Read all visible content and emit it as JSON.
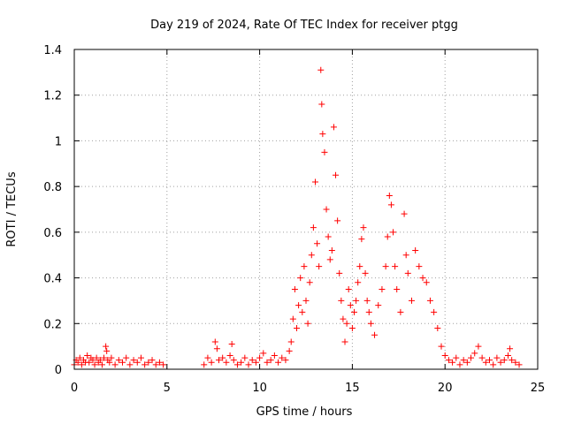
{
  "chart_data": {
    "type": "scatter",
    "title": "Day 219 of 2024, Rate Of TEC Index for receiver ptgg",
    "xlabel": "GPS time / hours",
    "ylabel": "ROTI / TECUs",
    "xlim": [
      0,
      25
    ],
    "ylim": [
      0,
      1.4
    ],
    "x_ticks": [
      0,
      5,
      10,
      15,
      20,
      25
    ],
    "x_tick_labels": [
      "0",
      "5",
      "10",
      "15",
      "20",
      "25"
    ],
    "y_ticks": [
      0,
      0.2,
      0.4,
      0.6,
      0.8,
      1,
      1.2,
      1.4
    ],
    "y_tick_labels": [
      "0",
      "0.2",
      "0.4",
      "0.6",
      "0.8",
      "1",
      "1.2",
      "1.4"
    ],
    "grid": true,
    "marker": "+",
    "series": [
      {
        "name": "ROTI",
        "color": "#ff0000",
        "points": [
          [
            0.0,
            0.02
          ],
          [
            0.1,
            0.04
          ],
          [
            0.2,
            0.03
          ],
          [
            0.3,
            0.05
          ],
          [
            0.4,
            0.02
          ],
          [
            0.5,
            0.04
          ],
          [
            0.6,
            0.03
          ],
          [
            0.7,
            0.06
          ],
          [
            0.8,
            0.03
          ],
          [
            0.9,
            0.05
          ],
          [
            1.0,
            0.04
          ],
          [
            1.1,
            0.02
          ],
          [
            1.2,
            0.05
          ],
          [
            1.3,
            0.03
          ],
          [
            1.4,
            0.04
          ],
          [
            1.5,
            0.02
          ],
          [
            1.6,
            0.05
          ],
          [
            1.7,
            0.1
          ],
          [
            1.75,
            0.08
          ],
          [
            1.8,
            0.04
          ],
          [
            1.9,
            0.03
          ],
          [
            2.0,
            0.05
          ],
          [
            2.2,
            0.02
          ],
          [
            2.4,
            0.04
          ],
          [
            2.6,
            0.03
          ],
          [
            2.8,
            0.05
          ],
          [
            3.0,
            0.02
          ],
          [
            3.2,
            0.04
          ],
          [
            3.4,
            0.03
          ],
          [
            3.6,
            0.05
          ],
          [
            3.8,
            0.02
          ],
          [
            4.0,
            0.03
          ],
          [
            4.2,
            0.04
          ],
          [
            4.4,
            0.02
          ],
          [
            4.6,
            0.03
          ],
          [
            4.8,
            0.02
          ],
          [
            7.0,
            0.02
          ],
          [
            7.2,
            0.05
          ],
          [
            7.4,
            0.03
          ],
          [
            7.6,
            0.12
          ],
          [
            7.7,
            0.09
          ],
          [
            7.8,
            0.04
          ],
          [
            8.0,
            0.05
          ],
          [
            8.2,
            0.03
          ],
          [
            8.4,
            0.06
          ],
          [
            8.5,
            0.11
          ],
          [
            8.6,
            0.04
          ],
          [
            8.8,
            0.02
          ],
          [
            9.0,
            0.03
          ],
          [
            9.2,
            0.05
          ],
          [
            9.4,
            0.02
          ],
          [
            9.6,
            0.04
          ],
          [
            9.8,
            0.03
          ],
          [
            10.0,
            0.05
          ],
          [
            10.2,
            0.07
          ],
          [
            10.4,
            0.03
          ],
          [
            10.6,
            0.04
          ],
          [
            10.8,
            0.06
          ],
          [
            11.0,
            0.03
          ],
          [
            11.2,
            0.05
          ],
          [
            11.4,
            0.04
          ],
          [
            11.6,
            0.08
          ],
          [
            11.7,
            0.12
          ],
          [
            11.8,
            0.22
          ],
          [
            11.9,
            0.35
          ],
          [
            12.0,
            0.18
          ],
          [
            12.1,
            0.28
          ],
          [
            12.2,
            0.4
          ],
          [
            12.3,
            0.25
          ],
          [
            12.4,
            0.45
          ],
          [
            12.5,
            0.3
          ],
          [
            12.6,
            0.2
          ],
          [
            12.7,
            0.38
          ],
          [
            12.8,
            0.5
          ],
          [
            12.9,
            0.62
          ],
          [
            13.0,
            0.82
          ],
          [
            13.1,
            0.55
          ],
          [
            13.2,
            0.45
          ],
          [
            13.3,
            1.31
          ],
          [
            13.35,
            1.16
          ],
          [
            13.4,
            1.03
          ],
          [
            13.5,
            0.95
          ],
          [
            13.6,
            0.7
          ],
          [
            13.7,
            0.58
          ],
          [
            13.8,
            0.48
          ],
          [
            13.9,
            0.52
          ],
          [
            14.0,
            1.06
          ],
          [
            14.1,
            0.85
          ],
          [
            14.2,
            0.65
          ],
          [
            14.3,
            0.42
          ],
          [
            14.4,
            0.3
          ],
          [
            14.5,
            0.22
          ],
          [
            14.6,
            0.12
          ],
          [
            14.7,
            0.2
          ],
          [
            14.8,
            0.35
          ],
          [
            14.9,
            0.28
          ],
          [
            15.0,
            0.18
          ],
          [
            15.1,
            0.25
          ],
          [
            15.2,
            0.3
          ],
          [
            15.3,
            0.38
          ],
          [
            15.4,
            0.45
          ],
          [
            15.5,
            0.57
          ],
          [
            15.6,
            0.62
          ],
          [
            15.7,
            0.42
          ],
          [
            15.8,
            0.3
          ],
          [
            15.9,
            0.25
          ],
          [
            16.0,
            0.2
          ],
          [
            16.2,
            0.15
          ],
          [
            16.4,
            0.28
          ],
          [
            16.6,
            0.35
          ],
          [
            16.8,
            0.45
          ],
          [
            16.9,
            0.58
          ],
          [
            17.0,
            0.76
          ],
          [
            17.1,
            0.72
          ],
          [
            17.2,
            0.6
          ],
          [
            17.3,
            0.45
          ],
          [
            17.4,
            0.35
          ],
          [
            17.6,
            0.25
          ],
          [
            17.8,
            0.68
          ],
          [
            17.9,
            0.5
          ],
          [
            18.0,
            0.42
          ],
          [
            18.2,
            0.3
          ],
          [
            18.4,
            0.52
          ],
          [
            18.6,
            0.45
          ],
          [
            18.8,
            0.4
          ],
          [
            19.0,
            0.38
          ],
          [
            19.2,
            0.3
          ],
          [
            19.4,
            0.25
          ],
          [
            19.6,
            0.18
          ],
          [
            19.8,
            0.1
          ],
          [
            20.0,
            0.06
          ],
          [
            20.2,
            0.04
          ],
          [
            20.4,
            0.03
          ],
          [
            20.6,
            0.05
          ],
          [
            20.8,
            0.02
          ],
          [
            21.0,
            0.04
          ],
          [
            21.2,
            0.03
          ],
          [
            21.4,
            0.05
          ],
          [
            21.6,
            0.07
          ],
          [
            21.8,
            0.1
          ],
          [
            22.0,
            0.05
          ],
          [
            22.2,
            0.03
          ],
          [
            22.4,
            0.04
          ],
          [
            22.6,
            0.02
          ],
          [
            22.8,
            0.05
          ],
          [
            23.0,
            0.03
          ],
          [
            23.2,
            0.04
          ],
          [
            23.4,
            0.06
          ],
          [
            23.5,
            0.09
          ],
          [
            23.6,
            0.04
          ],
          [
            23.8,
            0.03
          ],
          [
            24.0,
            0.02
          ]
        ]
      }
    ]
  }
}
